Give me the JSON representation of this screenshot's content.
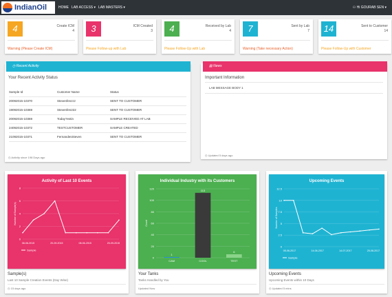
{
  "header": {
    "logo_text": "IndianOil",
    "logo_small": "इंडियनऑयल",
    "nav": [
      "HOME",
      "LAB ACCESS ▾",
      "LAB MASTERS ▾"
    ],
    "user": "Hi GOURAB SEN ▾"
  },
  "stats": [
    {
      "value": "4",
      "label": "Create ICM",
      "count": "4",
      "message": "Warning (Please Create ICM)",
      "color": "#f5a623",
      "msg_color": "#e8622c"
    },
    {
      "value": "3",
      "label": "ICM Created",
      "count": "3",
      "message": "Please Follow-up with Lab",
      "color": "#e8336b",
      "msg_color": "#f5a623"
    },
    {
      "value": "4",
      "label": "Received by Lab",
      "count": "4",
      "message": "Please Follow-Up with Lab",
      "color": "#4caf50",
      "msg_color": "#f5a623"
    },
    {
      "value": "7",
      "label": "Sent by Lab",
      "count": "7",
      "message": "Warning (Take necessary Action)",
      "color": "#1fb3d2",
      "msg_color": "#e8622c"
    },
    {
      "value": "14",
      "label": "Sent to Customer",
      "count": "14",
      "message": "Please Follow-Up with Customer",
      "color": "#1fb3d2",
      "msg_color": "#f5a623"
    }
  ],
  "recent": {
    "header": "Recent Activity",
    "title": "Your Recent Activity Status",
    "columns": [
      "Sample Id",
      "Customer Name",
      "Status"
    ],
    "rows": [
      [
        "20092015-10370",
        "Stevenfenzzz",
        "SENT TO CUSTOMER"
      ],
      [
        "19092015-10369",
        "Stevenfen222",
        "SENT TO CUSTOMER"
      ],
      [
        "20092015-10369",
        "Today?estin",
        "SAMPLE RECEIVED AT LAB"
      ],
      [
        "24092015-10372",
        "TESTCUSTOMER",
        "SAMPLE CREATED"
      ],
      [
        "21092015-10371",
        "FernandesSteven",
        "SENT TO CUSTOMER"
      ]
    ],
    "footer": "Activity since 198 Days ago"
  },
  "news": {
    "header": "News",
    "title": "Important Information",
    "message": "LAB MESSAGE BODY 1",
    "footer": "Updated 5 days ago"
  },
  "chart_data": [
    {
      "type": "line",
      "title": "Activity of Last 10 Events",
      "ylabel": "Number of Sample(s)",
      "ylim": [
        0,
        8
      ],
      "yticks": [
        "8",
        "6",
        "4",
        "2",
        "0"
      ],
      "x_labels": [
        "08-06-2015",
        "20-09-2015",
        "08-06-2015",
        "20-09-2015"
      ],
      "x": [
        0,
        1,
        2,
        3,
        4,
        5,
        6,
        7,
        8,
        9
      ],
      "values": [
        1,
        3,
        4,
        6,
        1,
        1,
        1,
        1,
        1,
        3
      ],
      "legend": "Sample",
      "color": "#e8336b"
    },
    {
      "type": "bar",
      "title": "Individual Industry with its Customers",
      "ylabel": "Count",
      "ylim": [
        0,
        120
      ],
      "yticks": [
        "120",
        "100",
        "80",
        "60",
        "40",
        "20",
        "0"
      ],
      "categories": [
        "CAM",
        "COOL",
        "TEST"
      ],
      "values": [
        1,
        113,
        6
      ],
      "data_labels": [
        "1",
        "113",
        "6"
      ],
      "color": "#4caf50"
    },
    {
      "type": "line",
      "title": "Upcoming Events",
      "ylabel": "Number of Samples",
      "ylim": [
        0,
        12.5
      ],
      "yticks": [
        "12.5",
        "10",
        "7.5",
        "5",
        "2.5",
        "0"
      ],
      "x_labels": [
        "05-06-2017",
        "14-06-2017",
        "14-07-2017",
        "25-08-2017"
      ],
      "x": [
        0,
        1,
        2,
        3,
        4,
        5,
        6,
        7,
        8,
        9,
        10
      ],
      "values": [
        10,
        10,
        3,
        2.8,
        4,
        2.6,
        3,
        3.2,
        3.4,
        3.6,
        3.8
      ],
      "legend": "Sample",
      "color": "#1fb3d2"
    }
  ],
  "cards_below": [
    {
      "title": "Sample(s)",
      "subtitle": "Last 10 Sample Creation Events (Day Wise)",
      "footer": "15 days ago"
    },
    {
      "title": "Your Tanks",
      "subtitle": "Tanks Handled by You",
      "footer": "Updated Now"
    },
    {
      "title": "Upcoming Events",
      "subtitle": "Upcoming Events within 10 Days",
      "footer": "Updated 5 mins"
    }
  ]
}
